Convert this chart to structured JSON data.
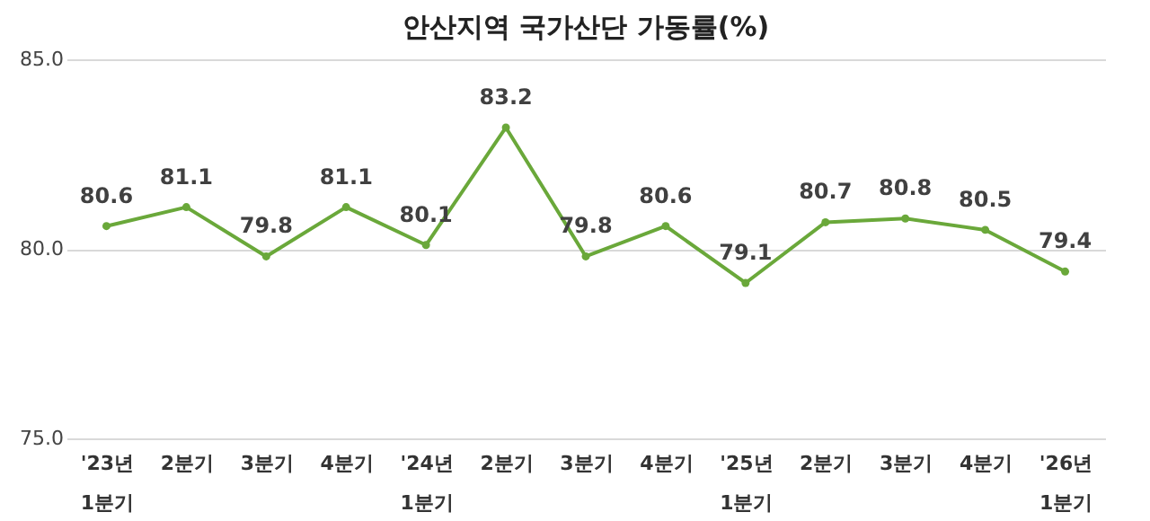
{
  "chart_data": {
    "type": "line",
    "title": "안산지역 국가산단 가동률(%)",
    "categories": [
      "'23년\n1분기",
      "2분기",
      "3분기",
      "4분기",
      "'24년\n1분기",
      "2분기",
      "3분기",
      "4분기",
      "'25년\n1분기",
      "2분기",
      "3분기",
      "4분기",
      "'26년\n1분기"
    ],
    "series": [
      {
        "color": "#6aa83a",
        "values": [
          80.6,
          81.1,
          79.8,
          81.1,
          80.1,
          83.2,
          79.8,
          80.6,
          79.1,
          80.7,
          80.8,
          80.5,
          79.4
        ]
      }
    ],
    "ylim": [
      75.0,
      85.0
    ],
    "yticks": [
      {
        "value": 75,
        "label": "75.0"
      },
      {
        "value": 80,
        "label": "80.0"
      },
      {
        "value": 85,
        "label": "85.0"
      }
    ],
    "grid": "y",
    "data_labels": true,
    "marker": "circle",
    "line_style": "solid"
  }
}
